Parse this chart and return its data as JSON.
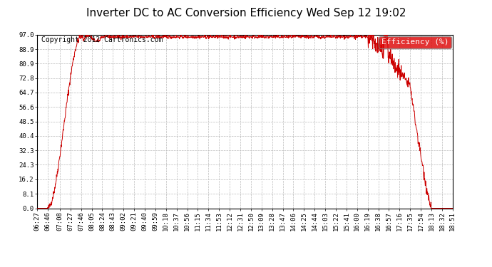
{
  "title": "Inverter DC to AC Conversion Efficiency Wed Sep 12 19:02",
  "copyright": "Copyright 2012 Cartronics.com",
  "legend_label": "Efficiency (%)",
  "legend_bg": "#dd0000",
  "line_color": "#cc0000",
  "bg_color": "#ffffff",
  "plot_bg_color": "#ffffff",
  "grid_color": "#bbbbbb",
  "yticks": [
    0.0,
    8.1,
    16.2,
    24.3,
    32.3,
    40.4,
    48.5,
    56.6,
    64.7,
    72.8,
    80.9,
    88.9,
    97.0
  ],
  "ylim": [
    0.0,
    97.0
  ],
  "xtick_labels": [
    "06:27",
    "06:46",
    "07:08",
    "07:27",
    "07:46",
    "08:05",
    "08:24",
    "08:43",
    "09:02",
    "09:21",
    "09:40",
    "09:59",
    "10:18",
    "10:37",
    "10:56",
    "11:15",
    "11:34",
    "11:53",
    "12:12",
    "12:31",
    "12:50",
    "13:09",
    "13:28",
    "13:47",
    "14:06",
    "14:25",
    "14:44",
    "15:03",
    "15:22",
    "15:41",
    "16:00",
    "16:19",
    "16:38",
    "16:57",
    "17:16",
    "17:35",
    "17:54",
    "18:13",
    "18:32",
    "18:51"
  ],
  "title_fontsize": 11,
  "copyright_fontsize": 7,
  "axis_fontsize": 6.5,
  "legend_fontsize": 8
}
